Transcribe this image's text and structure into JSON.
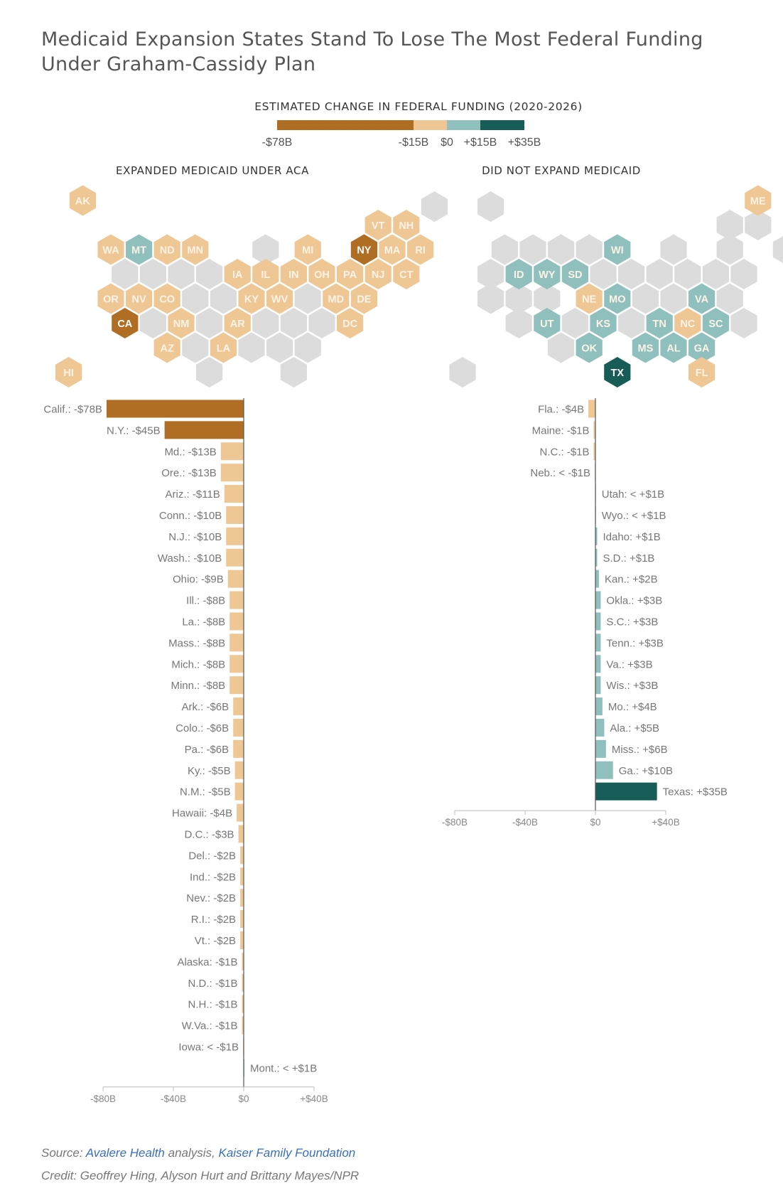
{
  "title_lines": [
    "Medicaid Expansion States Stand To Lose The Most Federal Funding",
    "Under Graham-Cassidy Plan"
  ],
  "legend": {
    "title": "ESTIMATED CHANGE IN FEDERAL FUNDING (2020-2026)",
    "labels": [
      "-$78B",
      "-$15B",
      "$0",
      "+$15B",
      "+$35B"
    ],
    "colors": [
      "#b06d24",
      "#efc795",
      "#8fc0bd",
      "#185c58"
    ]
  },
  "maps": [
    {
      "title": "EXPANDED MEDICAID UNDER ACA",
      "states": [
        {
          "abbr": "AK",
          "level": "neg_small"
        },
        {
          "abbr": "VT",
          "level": "neg_small"
        },
        {
          "abbr": "NH",
          "level": "neg_small"
        },
        {
          "abbr": "WA",
          "level": "neg_small"
        },
        {
          "abbr": "MT",
          "level": "pos_small"
        },
        {
          "abbr": "ND",
          "level": "neg_small"
        },
        {
          "abbr": "MN",
          "level": "neg_small"
        },
        {
          "abbr": "MI",
          "level": "neg_small"
        },
        {
          "abbr": "NY",
          "level": "neg_large"
        },
        {
          "abbr": "MA",
          "level": "neg_small"
        },
        {
          "abbr": "RI",
          "level": "neg_small"
        },
        {
          "abbr": "IA",
          "level": "neg_small"
        },
        {
          "abbr": "IL",
          "level": "neg_small"
        },
        {
          "abbr": "IN",
          "level": "neg_small"
        },
        {
          "abbr": "OH",
          "level": "neg_small"
        },
        {
          "abbr": "PA",
          "level": "neg_small"
        },
        {
          "abbr": "NJ",
          "level": "neg_small"
        },
        {
          "abbr": "CT",
          "level": "neg_small"
        },
        {
          "abbr": "OR",
          "level": "neg_small"
        },
        {
          "abbr": "NV",
          "level": "neg_small"
        },
        {
          "abbr": "CO",
          "level": "neg_small"
        },
        {
          "abbr": "KY",
          "level": "neg_small"
        },
        {
          "abbr": "WV",
          "level": "neg_small"
        },
        {
          "abbr": "MD",
          "level": "neg_small"
        },
        {
          "abbr": "DE",
          "level": "neg_small"
        },
        {
          "abbr": "CA",
          "level": "neg_large"
        },
        {
          "abbr": "NM",
          "level": "neg_small"
        },
        {
          "abbr": "AR",
          "level": "neg_small"
        },
        {
          "abbr": "DC",
          "level": "neg_small"
        },
        {
          "abbr": "AZ",
          "level": "neg_small"
        },
        {
          "abbr": "LA",
          "level": "neg_small"
        },
        {
          "abbr": "HI",
          "level": "neg_small"
        }
      ]
    },
    {
      "title": "DID NOT EXPAND MEDICAID",
      "states": [
        {
          "abbr": "ME",
          "level": "neg_small"
        },
        {
          "abbr": "WI",
          "level": "pos_small"
        },
        {
          "abbr": "ID",
          "level": "pos_small"
        },
        {
          "abbr": "WY",
          "level": "pos_small"
        },
        {
          "abbr": "SD",
          "level": "pos_small"
        },
        {
          "abbr": "NE",
          "level": "neg_small"
        },
        {
          "abbr": "MO",
          "level": "pos_small"
        },
        {
          "abbr": "VA",
          "level": "pos_small"
        },
        {
          "abbr": "UT",
          "level": "pos_small"
        },
        {
          "abbr": "KS",
          "level": "pos_small"
        },
        {
          "abbr": "TN",
          "level": "pos_small"
        },
        {
          "abbr": "NC",
          "level": "neg_small"
        },
        {
          "abbr": "SC",
          "level": "pos_small"
        },
        {
          "abbr": "OK",
          "level": "pos_small"
        },
        {
          "abbr": "MS",
          "level": "pos_small"
        },
        {
          "abbr": "AL",
          "level": "pos_small"
        },
        {
          "abbr": "GA",
          "level": "pos_small"
        },
        {
          "abbr": "TX",
          "level": "pos_large"
        },
        {
          "abbr": "FL",
          "level": "neg_small"
        }
      ]
    }
  ],
  "chart_data": [
    {
      "type": "bar",
      "orientation": "horizontal",
      "title": "",
      "xlabel": "",
      "ylabel": "",
      "xlim": [
        -80,
        40
      ],
      "x_ticks": [
        "-$80B",
        "-$40B",
        "$0",
        "+$40B"
      ],
      "grid": false,
      "bars": [
        {
          "label": "Calif.: -$78B",
          "value": -78
        },
        {
          "label": "N.Y.: -$45B",
          "value": -45
        },
        {
          "label": "Md.: -$13B",
          "value": -13
        },
        {
          "label": "Ore.: -$13B",
          "value": -13
        },
        {
          "label": "Ariz.: -$11B",
          "value": -11
        },
        {
          "label": "Conn.: -$10B",
          "value": -10
        },
        {
          "label": "N.J.: -$10B",
          "value": -10
        },
        {
          "label": "Wash.: -$10B",
          "value": -10
        },
        {
          "label": "Ohio: -$9B",
          "value": -9
        },
        {
          "label": "Ill.: -$8B",
          "value": -8
        },
        {
          "label": "La.: -$8B",
          "value": -8
        },
        {
          "label": "Mass.: -$8B",
          "value": -8
        },
        {
          "label": "Mich.: -$8B",
          "value": -8
        },
        {
          "label": "Minn.: -$8B",
          "value": -8
        },
        {
          "label": "Ark.: -$6B",
          "value": -6
        },
        {
          "label": "Colo.: -$6B",
          "value": -6
        },
        {
          "label": "Pa.: -$6B",
          "value": -6
        },
        {
          "label": "Ky.: -$5B",
          "value": -5
        },
        {
          "label": "N.M.: -$5B",
          "value": -5
        },
        {
          "label": "Hawaii: -$4B",
          "value": -4
        },
        {
          "label": "D.C.: -$3B",
          "value": -3
        },
        {
          "label": "Del.: -$2B",
          "value": -2
        },
        {
          "label": "Ind.: -$2B",
          "value": -2
        },
        {
          "label": "Nev.: -$2B",
          "value": -2
        },
        {
          "label": "R.I.: -$2B",
          "value": -2
        },
        {
          "label": "Vt.: -$2B",
          "value": -2
        },
        {
          "label": "Alaska: -$1B",
          "value": -1
        },
        {
          "label": "N.D.: -$1B",
          "value": -1
        },
        {
          "label": "N.H.: -$1B",
          "value": -1
        },
        {
          "label": "W.Va.: -$1B",
          "value": -1
        },
        {
          "label": "Iowa: < -$1B",
          "value": -0.4
        },
        {
          "label": "Mont.: < +$1B",
          "value": 0.4
        }
      ]
    },
    {
      "type": "bar",
      "orientation": "horizontal",
      "title": "",
      "xlabel": "",
      "ylabel": "",
      "xlim": [
        -80,
        40
      ],
      "x_ticks": [
        "-$80B",
        "-$40B",
        "$0",
        "+$40B"
      ],
      "grid": false,
      "bars": [
        {
          "label": "Fla.: -$4B",
          "value": -4
        },
        {
          "label": "Maine: -$1B",
          "value": -1
        },
        {
          "label": "N.C.: -$1B",
          "value": -1
        },
        {
          "label": "Neb.: < -$1B",
          "value": -0.4
        },
        {
          "label": "Utah: < +$1B",
          "value": 0.3
        },
        {
          "label": "Wyo.: < +$1B",
          "value": 0.3
        },
        {
          "label": "Idaho: +$1B",
          "value": 1
        },
        {
          "label": "S.D.: +$1B",
          "value": 1
        },
        {
          "label": "Kan.: +$2B",
          "value": 2
        },
        {
          "label": "Okla.: +$3B",
          "value": 3
        },
        {
          "label": "S.C.: +$3B",
          "value": 3
        },
        {
          "label": "Tenn.: +$3B",
          "value": 3
        },
        {
          "label": "Va.: +$3B",
          "value": 3
        },
        {
          "label": "Wis.: +$3B",
          "value": 3
        },
        {
          "label": "Mo.: +$4B",
          "value": 4
        },
        {
          "label": "Ala.: +$5B",
          "value": 5
        },
        {
          "label": "Miss.: +$6B",
          "value": 6
        },
        {
          "label": "Ga.: +$10B",
          "value": 10
        },
        {
          "label": "Texas: +$35B",
          "value": 35
        }
      ]
    }
  ],
  "footer": {
    "source_prefix": "Source: ",
    "source_link1": "Avalere Health",
    "source_mid": " analysis, ",
    "source_link2": "Kaiser Family Foundation",
    "credit": "Credit: Geoffrey Hing, Alyson Hurt and Brittany Mayes/NPR"
  }
}
